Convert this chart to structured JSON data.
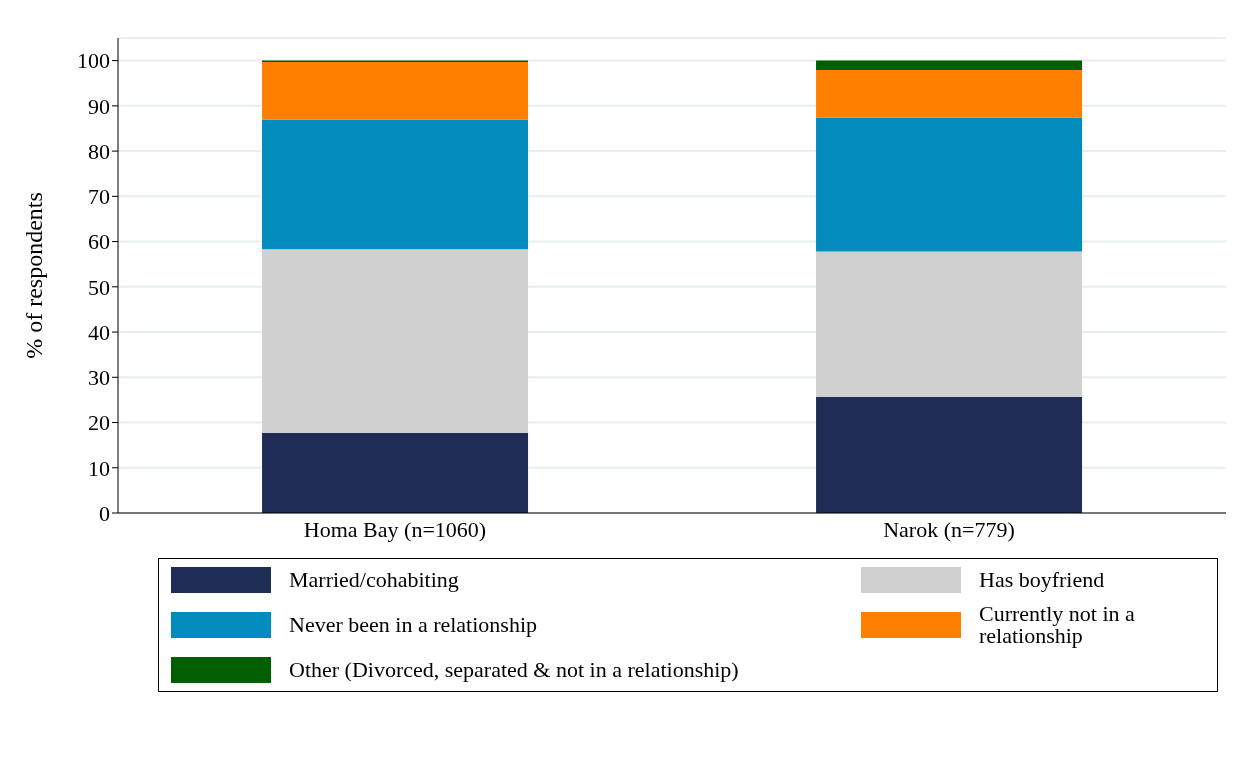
{
  "chart_data": {
    "type": "bar",
    "stacked": true,
    "ylabel": "% of respondents",
    "categories": [
      "Homa Bay (n=1060)",
      "Narok (n=779)"
    ],
    "series": [
      {
        "name": "Married/cohabiting",
        "color": "#1f2c55",
        "values": [
          17.7,
          25.7
        ]
      },
      {
        "name": "Has boyfriend",
        "color": "#d0d0d0",
        "values": [
          40.6,
          32.1
        ]
      },
      {
        "name": "Never been in a relationship",
        "color": "#028bbd",
        "values": [
          28.7,
          29.6
        ]
      },
      {
        "name": "Currently not in a relationship",
        "color": "#ff8000",
        "values": [
          12.7,
          10.5
        ]
      },
      {
        "name": "Other (Divorced, separated & not in a relationship)",
        "color": "#005f00",
        "values": [
          0.3,
          2.1
        ]
      }
    ],
    "ylim": [
      0,
      105
    ],
    "yticks": [
      0,
      10,
      20,
      30,
      40,
      50,
      60,
      70,
      80,
      90,
      100
    ],
    "grid": "y",
    "legend": "bottom"
  }
}
